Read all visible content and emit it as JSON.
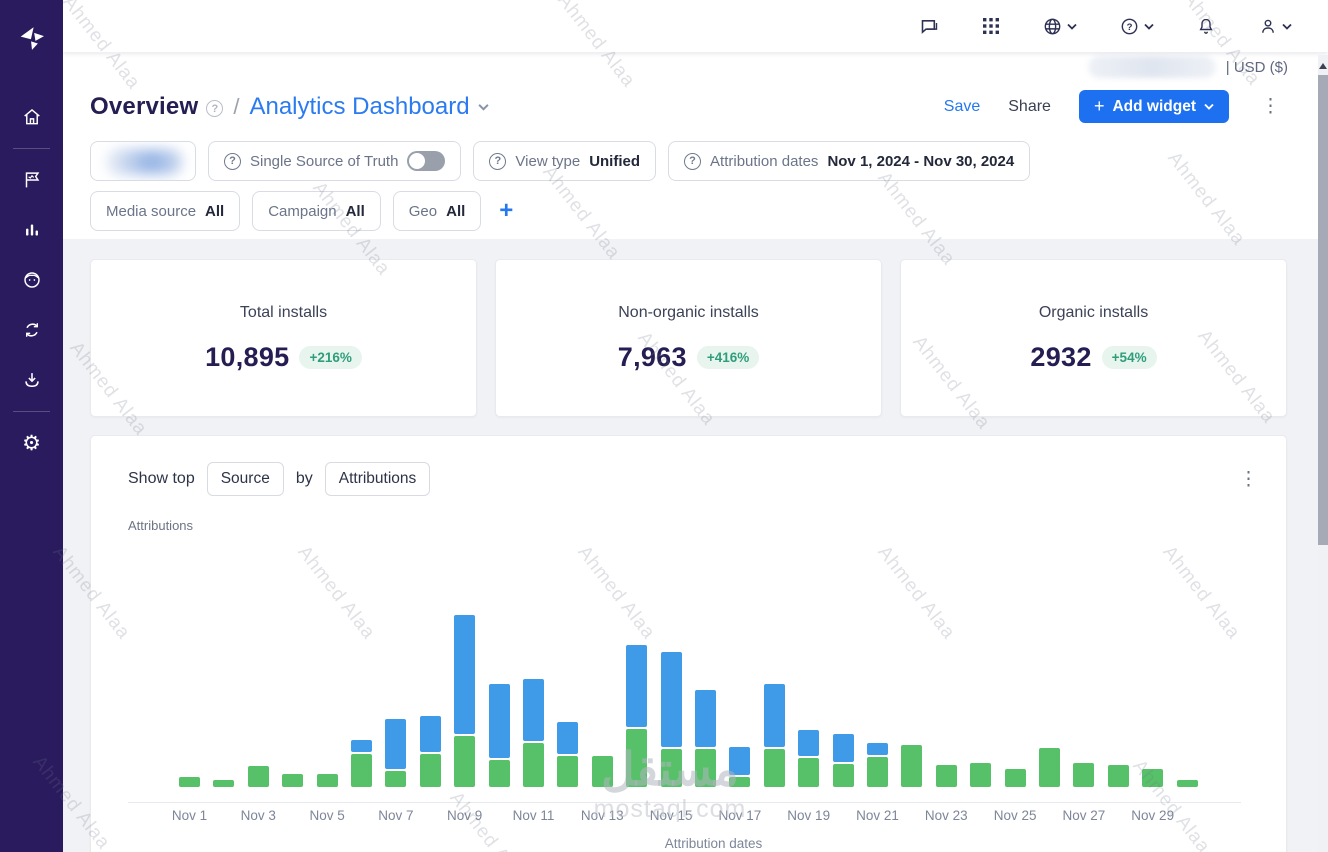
{
  "topbar": {
    "currency_label": "| USD ($)",
    "icons": [
      "chat-icon",
      "apps-grid-icon",
      "globe-icon",
      "help-icon",
      "notifications-bell-icon",
      "account-person-icon"
    ]
  },
  "sidebar": {
    "icons": [
      "appsflyer-logo",
      "home-icon",
      "dashboards-flag-icon",
      "analytics-bars-icon",
      "audience-face-icon",
      "sync-icon",
      "export-download-icon",
      "settings-gear-icon"
    ],
    "settings_glyph": "⚙"
  },
  "header": {
    "breadcrumb_root": "Overview",
    "breadcrumb_sep": "/",
    "breadcrumb_current": "Analytics Dashboard",
    "help_glyph": "?",
    "save_label": "Save",
    "share_label": "Share",
    "add_widget_plus": "+",
    "add_widget_label": "Add widget",
    "kebab_glyph": "⋮"
  },
  "filters": {
    "question_glyph": "?",
    "sst_label": "Single Source of Truth",
    "view_type_label": "View type",
    "view_type_value": "Unified",
    "attribution_dates_label": "Attribution dates",
    "attribution_dates_value": "Nov 1, 2024 - Nov 30, 2024",
    "media_source_label": "Media source",
    "media_source_value": "All",
    "campaign_label": "Campaign",
    "campaign_value": "All",
    "geo_label": "Geo",
    "geo_value": "All",
    "add_filter_label": "+"
  },
  "stats": [
    {
      "title": "Total installs",
      "value": "10,895",
      "delta": "+216%"
    },
    {
      "title": "Non-organic installs",
      "value": "7,963",
      "delta": "+416%"
    },
    {
      "title": "Organic installs",
      "value": "2932",
      "delta": "+54%"
    }
  ],
  "widget": {
    "show_top_label": "Show top",
    "dimension_value": "Source",
    "by_label": "by",
    "metric_value": "Attributions",
    "y_axis_label": "Attributions",
    "x_axis_label": "Attribution dates",
    "kebab_glyph": "⋮"
  },
  "chart_data": {
    "type": "bar",
    "stacked": true,
    "title": "Show top Source by Attributions",
    "xlabel": "Attribution dates",
    "ylabel": "Attributions",
    "legend": "not shown in screenshot",
    "y_axis_tick_labels": "none shown",
    "unit": "relative height units (chart has no visible y-axis scale)",
    "tick_every": 2,
    "categories": [
      "Nov 1",
      "Nov 2",
      "Nov 3",
      "Nov 4",
      "Nov 5",
      "Nov 6",
      "Nov 7",
      "Nov 8",
      "Nov 9",
      "Nov 10",
      "Nov 11",
      "Nov 12",
      "Nov 13",
      "Nov 14",
      "Nov 15",
      "Nov 16",
      "Nov 17",
      "Nov 18",
      "Nov 19",
      "Nov 20",
      "Nov 21",
      "Nov 22",
      "Nov 23",
      "Nov 24",
      "Nov 25",
      "Nov 26",
      "Nov 27",
      "Nov 28",
      "Nov 29",
      "Nov 30"
    ],
    "series": [
      {
        "name": "green-bottom-segment",
        "color": "#57c169",
        "values": [
          10,
          7,
          21,
          13,
          13,
          33,
          16,
          33,
          51,
          27,
          44,
          31,
          31,
          58,
          38,
          38,
          10,
          38,
          29,
          23,
          30,
          42,
          22,
          24,
          18,
          39,
          24,
          22,
          18,
          7
        ]
      },
      {
        "name": "blue-top-segment",
        "color": "#3f9ae8",
        "values": [
          0,
          0,
          0,
          0,
          0,
          12,
          50,
          36,
          119,
          74,
          62,
          32,
          0,
          82,
          95,
          57,
          28,
          63,
          26,
          28,
          12,
          0,
          0,
          0,
          0,
          0,
          0,
          0,
          0,
          0
        ]
      }
    ]
  },
  "watermark": {
    "text": "Ahmed Alaa",
    "center_title": "مستقل",
    "center_subtitle": "mostaql.com"
  },
  "colors": {
    "sidebar_bg": "#2a1b5f",
    "accent_blue": "#1d70f0",
    "link_blue": "#2478f0",
    "bar_green": "#57c169",
    "bar_blue": "#3f9ae8",
    "badge_bg": "#e8f5ee",
    "badge_text": "#2f9d7c",
    "content_bg": "#f1f2f5"
  }
}
